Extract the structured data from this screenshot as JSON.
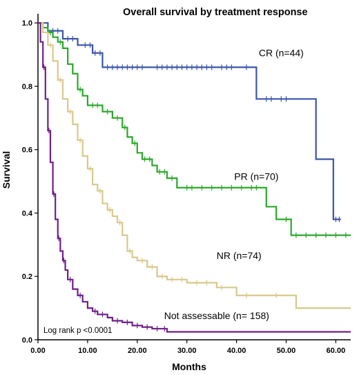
{
  "chart_data": {
    "type": "line",
    "title": "Overall survival by treatment response",
    "xlabel": "Months",
    "ylabel": "Survival",
    "xlim": [
      0,
      63
    ],
    "ylim": [
      0,
      1.02
    ],
    "x_ticks": [
      "0.00",
      "10.00",
      "20.00",
      "30.00",
      "40.00",
      "50.00",
      "60.00"
    ],
    "x_tick_values": [
      0,
      10,
      20,
      30,
      40,
      50,
      60
    ],
    "y_ticks": [
      "0.0",
      "0.2",
      "0.4",
      "0.6",
      "0.8",
      "1.0"
    ],
    "y_tick_values": [
      0,
      0.2,
      0.4,
      0.6,
      0.8,
      1.0
    ],
    "grid": false,
    "legend": "none",
    "annotation": "Log rank p <0.0001",
    "series": [
      {
        "name": "CR (n=44)",
        "color": "#3a55a8",
        "label_at": [
          49,
          0.895
        ],
        "steps": [
          [
            0,
            1.0
          ],
          [
            2,
            0.975
          ],
          [
            5,
            0.95
          ],
          [
            8,
            0.93
          ],
          [
            11,
            0.905
          ],
          [
            13,
            0.86
          ],
          [
            44,
            0.86
          ],
          [
            44,
            0.76
          ],
          [
            52,
            0.76
          ],
          [
            56,
            0.57
          ],
          [
            59.5,
            0.57
          ],
          [
            59.5,
            0.38
          ],
          [
            61,
            0.38
          ]
        ],
        "censors": [
          3,
          4,
          6,
          7,
          9.5,
          10.5,
          11.5,
          12.5,
          14,
          15,
          16,
          17,
          18,
          19,
          20,
          21,
          24,
          25,
          26,
          27,
          28,
          29,
          30,
          31,
          32,
          33,
          34,
          35,
          37,
          38,
          39,
          42,
          46,
          47,
          49,
          50,
          60,
          60.7
        ]
      },
      {
        "name": "PR (n=70)",
        "color": "#2aa82a",
        "label_at": [
          44,
          0.505
        ],
        "steps": [
          [
            0,
            1.0
          ],
          [
            1,
            0.985
          ],
          [
            2,
            0.97
          ],
          [
            3,
            0.955
          ],
          [
            4,
            0.94
          ],
          [
            5,
            0.92
          ],
          [
            6,
            0.87
          ],
          [
            7,
            0.84
          ],
          [
            8,
            0.79
          ],
          [
            9,
            0.77
          ],
          [
            10,
            0.74
          ],
          [
            13,
            0.72
          ],
          [
            15,
            0.7
          ],
          [
            17,
            0.67
          ],
          [
            18,
            0.64
          ],
          [
            19,
            0.62
          ],
          [
            20,
            0.59
          ],
          [
            21,
            0.57
          ],
          [
            23,
            0.55
          ],
          [
            24,
            0.53
          ],
          [
            26,
            0.51
          ],
          [
            28,
            0.48
          ],
          [
            46,
            0.48
          ],
          [
            46,
            0.42
          ],
          [
            48,
            0.38
          ],
          [
            51,
            0.38
          ],
          [
            51,
            0.33
          ],
          [
            63,
            0.33
          ]
        ],
        "censors": [
          2.5,
          4.5,
          8.5,
          11,
          12,
          14,
          16,
          17.5,
          19.5,
          21.5,
          22.5,
          24.5,
          25.5,
          27,
          30,
          31,
          33,
          35,
          37,
          39,
          41,
          43,
          44,
          50,
          52,
          54,
          56,
          58,
          60,
          62
        ]
      },
      {
        "name": "NR (n=74)",
        "color": "#d8c88a",
        "label_at": [
          40.5,
          0.255
        ],
        "steps": [
          [
            0,
            1.0
          ],
          [
            1,
            0.97
          ],
          [
            2,
            0.93
          ],
          [
            3,
            0.88
          ],
          [
            4,
            0.82
          ],
          [
            5,
            0.76
          ],
          [
            6,
            0.72
          ],
          [
            7,
            0.68
          ],
          [
            8,
            0.63
          ],
          [
            9,
            0.58
          ],
          [
            10,
            0.54
          ],
          [
            11,
            0.49
          ],
          [
            12,
            0.47
          ],
          [
            13,
            0.43
          ],
          [
            14,
            0.41
          ],
          [
            15,
            0.39
          ],
          [
            16,
            0.37
          ],
          [
            17,
            0.33
          ],
          [
            18,
            0.28
          ],
          [
            19,
            0.26
          ],
          [
            20,
            0.25
          ],
          [
            22,
            0.23
          ],
          [
            24,
            0.2
          ],
          [
            26,
            0.19
          ],
          [
            30,
            0.18
          ],
          [
            36,
            0.165
          ],
          [
            40,
            0.14
          ],
          [
            45,
            0.14
          ],
          [
            52,
            0.1
          ],
          [
            63,
            0.1
          ]
        ],
        "censors": [
          2.5,
          4.5,
          6.5,
          8.5,
          10.5,
          12.5,
          14.5,
          16.5,
          18.5,
          21,
          23,
          25,
          27,
          29,
          32,
          34,
          37,
          42,
          48
        ]
      },
      {
        "name": "Not assessable (n= 158)",
        "color": "#6e1f8a",
        "label_at": [
          36,
          0.065
        ],
        "steps": [
          [
            0,
            1.0
          ],
          [
            0.5,
            0.94
          ],
          [
            1,
            0.86
          ],
          [
            1.5,
            0.76
          ],
          [
            2,
            0.66
          ],
          [
            2.5,
            0.56
          ],
          [
            3,
            0.46
          ],
          [
            3.5,
            0.38
          ],
          [
            4,
            0.32
          ],
          [
            4.5,
            0.28
          ],
          [
            5,
            0.25
          ],
          [
            5.5,
            0.22
          ],
          [
            6,
            0.19
          ],
          [
            7,
            0.16
          ],
          [
            8,
            0.14
          ],
          [
            9,
            0.12
          ],
          [
            10,
            0.1
          ],
          [
            11,
            0.09
          ],
          [
            12,
            0.08
          ],
          [
            14,
            0.07
          ],
          [
            15,
            0.06
          ],
          [
            17,
            0.055
          ],
          [
            19,
            0.045
          ],
          [
            21,
            0.04
          ],
          [
            23,
            0.035
          ],
          [
            26,
            0.025
          ],
          [
            63,
            0.025
          ]
        ],
        "censors": [
          1.2,
          2.2,
          3.2,
          4.2,
          5.2,
          6.5,
          8.5,
          11.5,
          13,
          16,
          18,
          20,
          22,
          24,
          25.5
        ]
      }
    ]
  }
}
